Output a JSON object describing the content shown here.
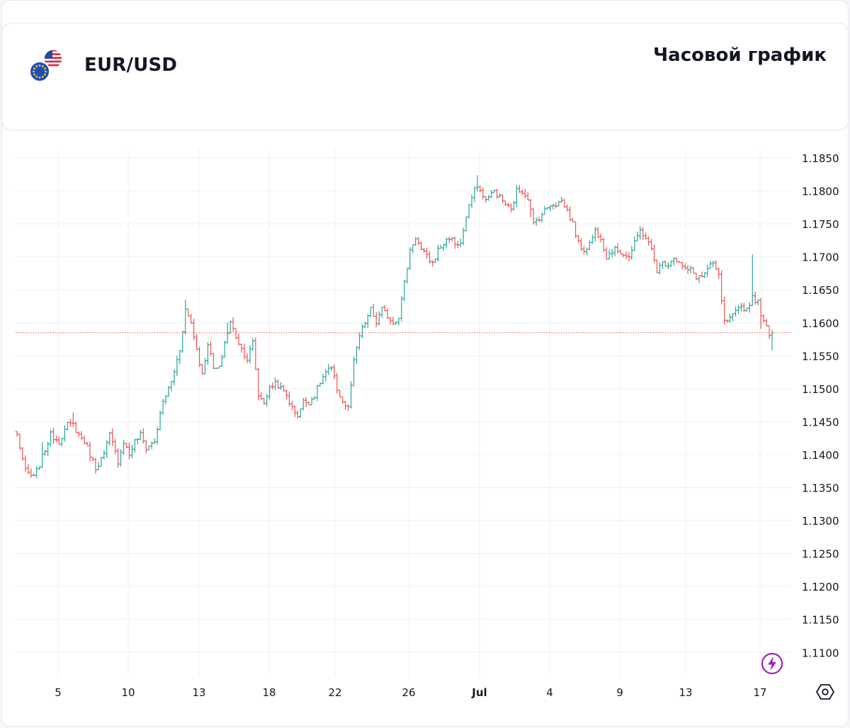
{
  "header": {
    "symbol": "EUR/USD",
    "timeframe_title": "Часовой график"
  },
  "icons": {
    "flags": "eur-usd-flags-icon",
    "bolt": "lightning-icon",
    "settings": "settings-hexagon-icon"
  },
  "colors": {
    "up": "#26a69a",
    "down": "#ef5350",
    "price_line": "#ef5350",
    "grid": "#eef0f3",
    "bolt": "#9c27b0"
  },
  "chart_data": {
    "type": "ohlc",
    "y_ticks": [
      "1.1850",
      "1.1800",
      "1.1750",
      "1.1700",
      "1.1650",
      "1.1600",
      "1.1550",
      "1.1500",
      "1.1450",
      "1.1400",
      "1.1350",
      "1.1300",
      "1.1250",
      "1.1200",
      "1.1150",
      "1.1100"
    ],
    "ylim": [
      1.1085,
      1.186
    ],
    "x_ticks": [
      "5",
      "10",
      "13",
      "18",
      "22",
      "26",
      "Jul",
      "4",
      "9",
      "13",
      "17"
    ],
    "current_price": 1.1585,
    "grid": true,
    "anchors": [
      [
        0,
        1.143
      ],
      [
        3,
        1.1375
      ],
      [
        6,
        1.1365
      ],
      [
        8,
        1.1385
      ],
      [
        12,
        1.143
      ],
      [
        15,
        1.142
      ],
      [
        18,
        1.1445
      ],
      [
        20,
        1.1445
      ],
      [
        22,
        1.143
      ],
      [
        24,
        1.142
      ],
      [
        26,
        1.14
      ],
      [
        28,
        1.138
      ],
      [
        31,
        1.14
      ],
      [
        33,
        1.143
      ],
      [
        36,
        1.139
      ],
      [
        38,
        1.142
      ],
      [
        40,
        1.14
      ],
      [
        42,
        1.142
      ],
      [
        44,
        1.143
      ],
      [
        46,
        1.141
      ],
      [
        49,
        1.142
      ],
      [
        52,
        1.148
      ],
      [
        55,
        1.151
      ],
      [
        58,
        1.156
      ],
      [
        60,
        1.162
      ],
      [
        62,
        1.16
      ],
      [
        64,
        1.156
      ],
      [
        66,
        1.152
      ],
      [
        68,
        1.157
      ],
      [
        70,
        1.153
      ],
      [
        72,
        1.153
      ],
      [
        74,
        1.157
      ],
      [
        76,
        1.16
      ],
      [
        78,
        1.158
      ],
      [
        80,
        1.156
      ],
      [
        82,
        1.1545
      ],
      [
        84,
        1.157
      ],
      [
        86,
        1.149
      ],
      [
        88,
        1.148
      ],
      [
        90,
        1.15
      ],
      [
        92,
        1.151
      ],
      [
        94,
        1.15
      ],
      [
        96,
        1.149
      ],
      [
        98,
        1.147
      ],
      [
        100,
        1.146
      ],
      [
        102,
        1.148
      ],
      [
        104,
        1.148
      ],
      [
        106,
        1.149
      ],
      [
        108,
        1.151
      ],
      [
        110,
        1.1525
      ],
      [
        112,
        1.153
      ],
      [
        114,
        1.15
      ],
      [
        116,
        1.148
      ],
      [
        118,
        1.147
      ],
      [
        120,
        1.154
      ],
      [
        122,
        1.158
      ],
      [
        124,
        1.16
      ],
      [
        126,
        1.162
      ],
      [
        128,
        1.16
      ],
      [
        130,
        1.162
      ],
      [
        132,
        1.161
      ],
      [
        134,
        1.16
      ],
      [
        136,
        1.161
      ],
      [
        138,
        1.166
      ],
      [
        140,
        1.171
      ],
      [
        142,
        1.173
      ],
      [
        144,
        1.171
      ],
      [
        146,
        1.17
      ],
      [
        148,
        1.169
      ],
      [
        150,
        1.171
      ],
      [
        152,
        1.172
      ],
      [
        154,
        1.173
      ],
      [
        156,
        1.172
      ],
      [
        158,
        1.172
      ],
      [
        160,
        1.176
      ],
      [
        162,
        1.179
      ],
      [
        164,
        1.181
      ],
      [
        166,
        1.179
      ],
      [
        168,
        1.179
      ],
      [
        170,
        1.18
      ],
      [
        172,
        1.179
      ],
      [
        174,
        1.178
      ],
      [
        176,
        1.177
      ],
      [
        178,
        1.18
      ],
      [
        180,
        1.18
      ],
      [
        182,
        1.179
      ],
      [
        184,
        1.175
      ],
      [
        186,
        1.176
      ],
      [
        188,
        1.177
      ],
      [
        190,
        1.178
      ],
      [
        192,
        1.178
      ],
      [
        194,
        1.1785
      ],
      [
        196,
        1.177
      ],
      [
        198,
        1.175
      ],
      [
        200,
        1.172
      ],
      [
        202,
        1.171
      ],
      [
        204,
        1.172
      ],
      [
        206,
        1.174
      ],
      [
        208,
        1.173
      ],
      [
        210,
        1.17
      ],
      [
        212,
        1.171
      ],
      [
        214,
        1.171
      ],
      [
        216,
        1.1705
      ],
      [
        218,
        1.17
      ],
      [
        220,
        1.172
      ],
      [
        222,
        1.174
      ],
      [
        224,
        1.173
      ],
      [
        226,
        1.171
      ],
      [
        228,
        1.168
      ],
      [
        230,
        1.169
      ],
      [
        232,
        1.169
      ],
      [
        234,
        1.17
      ],
      [
        236,
        1.169
      ],
      [
        238,
        1.168
      ],
      [
        240,
        1.168
      ],
      [
        242,
        1.167
      ],
      [
        244,
        1.167
      ],
      [
        246,
        1.168
      ],
      [
        248,
        1.169
      ],
      [
        250,
        1.167
      ],
      [
        252,
        1.16
      ],
      [
        254,
        1.1605
      ],
      [
        256,
        1.1615
      ],
      [
        258,
        1.1625
      ],
      [
        260,
        1.162
      ],
      [
        262,
        1.164
      ],
      [
        264,
        1.163
      ],
      [
        266,
        1.16
      ],
      [
        268,
        1.1585
      ],
      [
        269,
        1.1585
      ]
    ]
  }
}
